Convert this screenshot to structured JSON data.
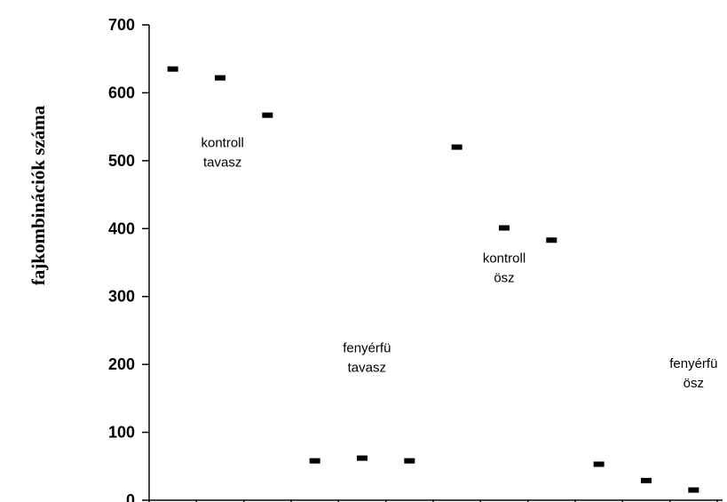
{
  "chart_data": {
    "type": "scatter",
    "title": "",
    "xlabel": "",
    "ylabel": "fajkombinációk száma",
    "ylim": [
      0,
      700
    ],
    "yticks": [
      0,
      100,
      200,
      300,
      400,
      500,
      600,
      700
    ],
    "grid": false,
    "legend": "none",
    "marker_color": "#000000",
    "x": [
      1,
      2,
      3,
      4,
      5,
      6,
      7,
      8,
      9,
      10,
      11,
      12
    ],
    "values": [
      635,
      622,
      567,
      58,
      62,
      58,
      520,
      401,
      383,
      53,
      29,
      15
    ],
    "annotations": [
      {
        "text": [
          "kontroll",
          "tavasz"
        ],
        "x": 2.05,
        "y": 520
      },
      {
        "text": [
          "fenyérfü",
          "tavasz"
        ],
        "x": 5.1,
        "y": 218
      },
      {
        "text": [
          "kontroll",
          "ösz"
        ],
        "x": 8.0,
        "y": 350
      },
      {
        "text": [
          "fenyérfü",
          "ösz"
        ],
        "x": 12.0,
        "y": 195
      }
    ]
  }
}
